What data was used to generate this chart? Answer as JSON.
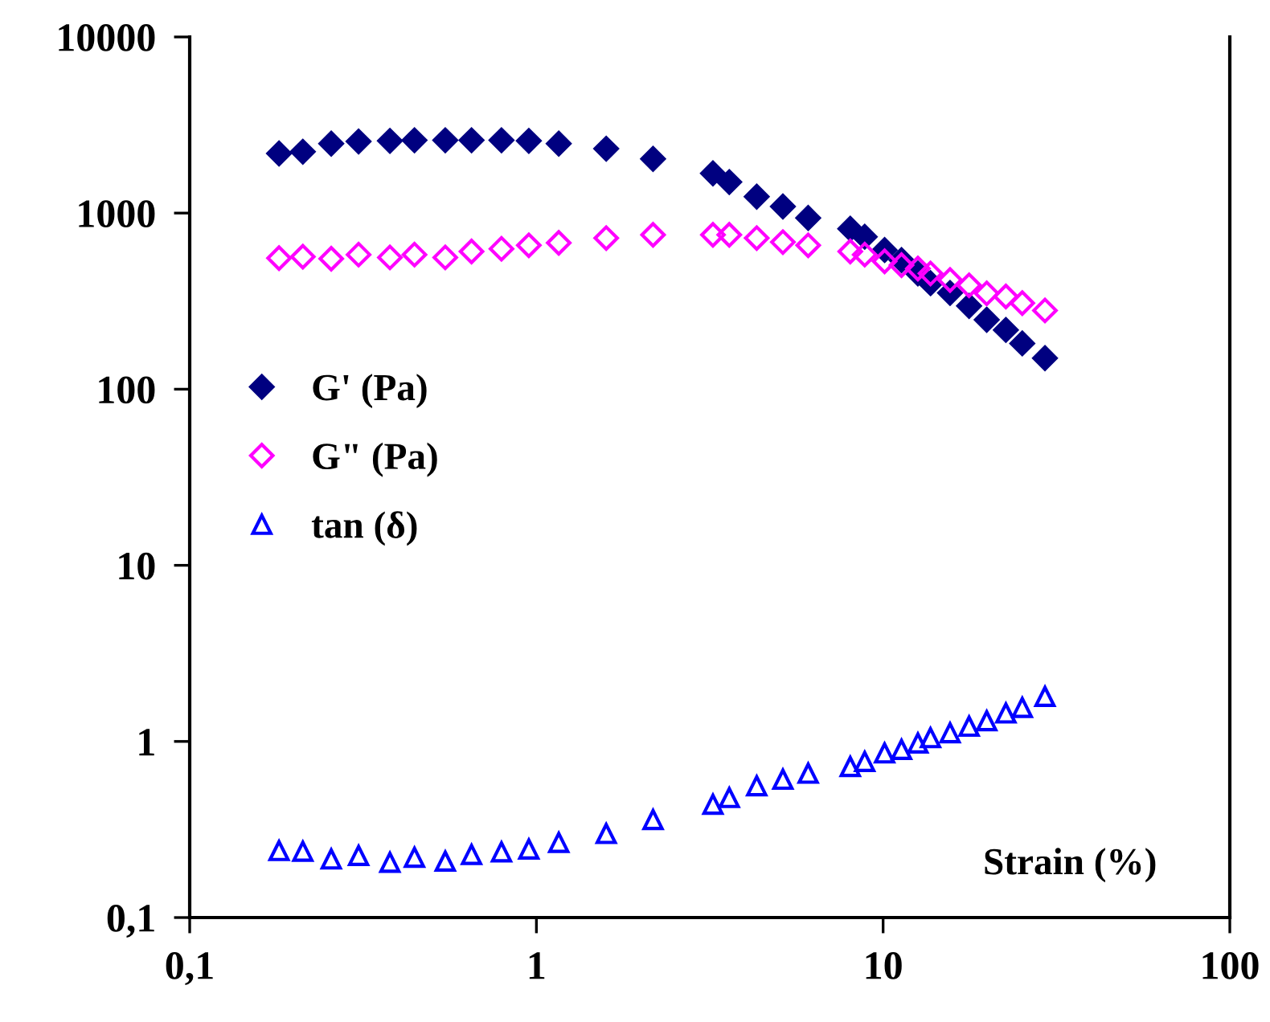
{
  "chart_data": {
    "type": "scatter",
    "xlabel": "Strain (%)",
    "log": "xy",
    "legend": "left",
    "grid": false,
    "xlim": [
      0.1,
      100
    ],
    "xticks": [
      {
        "value": 0.1,
        "label": "0,1"
      },
      1,
      10,
      100
    ],
    "ylim": [
      0.1,
      10000
    ],
    "yticks": [
      {
        "value": 0.1,
        "label": "0,1"
      },
      1,
      10,
      100,
      1000,
      10000
    ],
    "x": [
      0.181,
      0.212,
      0.256,
      0.307,
      0.378,
      0.445,
      0.546,
      0.65,
      0.793,
      0.951,
      1.16,
      1.59,
      2.17,
      3.23,
      3.6,
      4.32,
      5.14,
      6.08,
      8.04,
      8.85,
      10.1,
      11.3,
      12.6,
      13.7,
      15.6,
      17.7,
      19.9,
      22.6,
      25.2,
      29.3
    ],
    "series": [
      {
        "name": "G' (Pa)",
        "color": "#000080",
        "marker": "diamond",
        "values": [
          2180,
          2230,
          2480,
          2550,
          2570,
          2590,
          2590,
          2590,
          2590,
          2570,
          2480,
          2320,
          2030,
          1680,
          1500,
          1240,
          1090,
          938,
          815,
          734,
          617,
          541,
          454,
          400,
          352,
          297,
          248,
          217,
          182,
          150
        ]
      },
      {
        "name": "G\" (Pa)",
        "color": "#ff00ff",
        "marker": "diamond",
        "values": [
          555,
          565,
          551,
          581,
          560,
          581,
          560,
          605,
          627,
          656,
          678,
          721,
          753,
          753,
          753,
          721,
          684,
          656,
          605,
          581,
          532,
          506,
          484,
          454,
          417,
          389,
          350,
          336,
          308,
          280
        ]
      },
      {
        "name": "tan (δ)",
        "color": "#0000ff",
        "marker": "triangle",
        "values": [
          0.24,
          0.238,
          0.215,
          0.225,
          0.206,
          0.22,
          0.209,
          0.228,
          0.236,
          0.245,
          0.267,
          0.3,
          0.36,
          0.44,
          0.48,
          0.56,
          0.61,
          0.66,
          0.72,
          0.77,
          0.86,
          0.9,
          0.98,
          1.05,
          1.12,
          1.22,
          1.31,
          1.45,
          1.56,
          1.8
        ]
      }
    ]
  }
}
